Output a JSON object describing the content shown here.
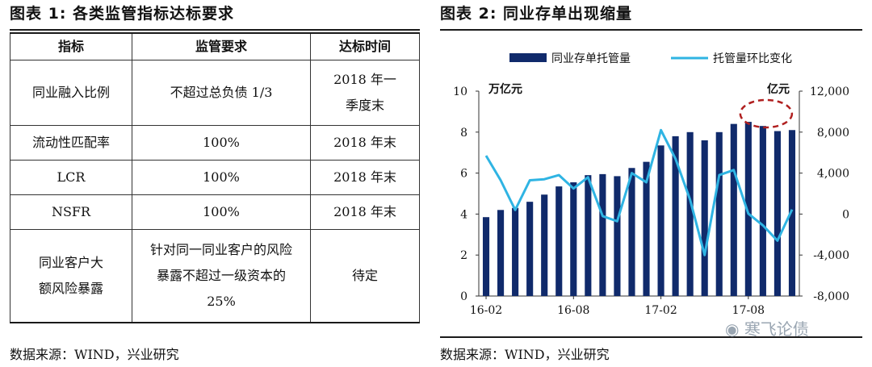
{
  "left_panel": {
    "title": "图表 1:  各类监管指标达标要求",
    "headers": [
      "指标",
      "监管要求",
      "达标时间"
    ],
    "rows": [
      [
        "同业融入比例",
        "不超过总负债 1/3",
        "2018 年一季度末"
      ],
      [
        "流动性匹配率",
        "100%",
        "2018 年末"
      ],
      [
        "LCR",
        "100%",
        "2018 年末"
      ],
      [
        "NSFR",
        "100%",
        "2018 年末"
      ],
      [
        "同业客户大额风险暴露",
        "针对同一同业客户的风险暴露不超过一级资本的 25%",
        "待定"
      ]
    ],
    "source": "数据来源：WIND，兴业研究"
  },
  "right_panel": {
    "title": "图表 2:  同业存单出现缩量",
    "source": "数据来源：WIND，兴业研究"
  },
  "watermark": "寒飞论债",
  "colors": {
    "bar": "#102a6b",
    "line": "#2fb4e3",
    "highlight": "#b02020"
  },
  "chart_data": {
    "type": "bar",
    "unit_left": "万亿元",
    "unit_right": "亿元",
    "x_tick_labels": [
      "16-02",
      "16-08",
      "17-02",
      "17-08"
    ],
    "categories": [
      "16-02",
      "16-03",
      "16-04",
      "16-05",
      "16-06",
      "16-07",
      "16-08",
      "16-09",
      "16-10",
      "16-11",
      "16-12",
      "17-01",
      "17-02",
      "17-03",
      "17-04",
      "17-05",
      "17-06",
      "17-07",
      "17-08",
      "17-09",
      "17-10",
      "17-11"
    ],
    "ylim_left": [
      0,
      10
    ],
    "yticks_left": [
      "0",
      "2",
      "4",
      "6",
      "8",
      "10"
    ],
    "ylim_right": [
      -8000,
      12000
    ],
    "yticks_right": [
      "-8,000",
      "-4,000",
      "0",
      "4,000",
      "8,000",
      "12,000"
    ],
    "series": [
      {
        "name": "同业存单托管量",
        "type": "bar",
        "axis": "left",
        "values": [
          3.85,
          4.2,
          4.3,
          4.6,
          4.95,
          5.35,
          5.55,
          5.9,
          5.95,
          5.85,
          6.25,
          6.55,
          7.35,
          7.8,
          8.0,
          7.6,
          8.0,
          8.4,
          8.5,
          8.3,
          8.05,
          8.1
        ]
      },
      {
        "name": "托管量环比变化",
        "type": "line",
        "axis": "right",
        "values": [
          5700,
          3300,
          400,
          3300,
          3400,
          3800,
          2500,
          3600,
          -200,
          -700,
          4000,
          3100,
          8200,
          5400,
          1400,
          -4000,
          3800,
          4300,
          50,
          -1100,
          -2600,
          450
        ]
      }
    ],
    "legend_position": "top",
    "grid": false
  }
}
